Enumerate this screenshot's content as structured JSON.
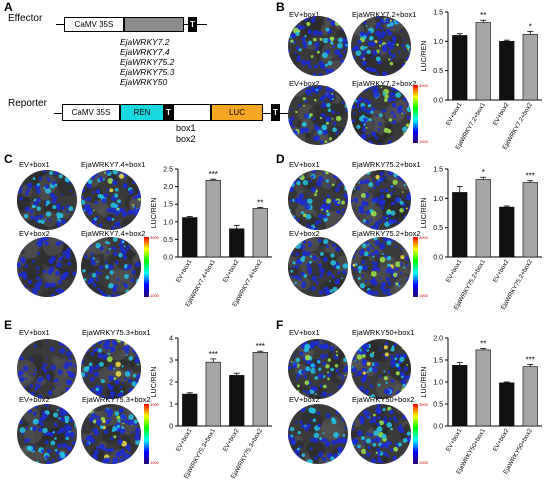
{
  "panel_a": {
    "label": "A",
    "effector_label": "Effector",
    "effector_promoter": "CaMV 35S",
    "effector_terminator": "T",
    "effector_genes": [
      "EjaWRKY7.2",
      "EjaWRKY7.4",
      "EjaWRKY75.2",
      "EjaWRKY75.3",
      "EjaWRKY50"
    ],
    "reporter_label": "Reporter",
    "reporter_promoter": "CaMV 35S",
    "reporter_ren": "REN",
    "reporter_t1": "T",
    "reporter_luc": "LUC",
    "reporter_t2": "T",
    "reporter_boxes": [
      "box1",
      "box2"
    ],
    "colors": {
      "effector_gene_box": "#8c8c8c",
      "ren": "#19d8e0",
      "luc": "#f5a623"
    }
  },
  "colorbar": {
    "max": "3000",
    "min": "1000"
  },
  "panels": [
    {
      "id": "B",
      "images": [
        "EV+box1",
        "EjaWRKY7.2+box1",
        "EV+box2",
        "EjaWRKY7.2+box2"
      ],
      "ylabel": "LUC/REN",
      "chart_data": {
        "type": "bar",
        "categories": [
          "EV+box1",
          "EjaWRKY7.2+box1",
          "EV+box2",
          "EjaWRKY7.2+box2"
        ],
        "values": [
          1.1,
          1.32,
          1.0,
          1.12
        ],
        "errors": [
          0.03,
          0.04,
          0.02,
          0.05
        ],
        "significance": [
          "",
          "**",
          "",
          "*"
        ],
        "ylim": [
          0,
          1.5
        ],
        "yticks": [
          "0.0",
          "0.5",
          "1.0",
          "1.5"
        ],
        "colors": [
          "#111111",
          "#a6a6a6",
          "#111111",
          "#a6a6a6"
        ]
      }
    },
    {
      "id": "C",
      "images": [
        "EV+box1",
        "EjaWRKY7.4+box1",
        "EV+box2",
        "EjaWRKY7.4+box2"
      ],
      "ylabel": "LUC/REN",
      "chart_data": {
        "type": "bar",
        "categories": [
          "EV+box1",
          "EjaWRKY7.4+box1",
          "EV+box2",
          "EjaWRKY7.4+box2"
        ],
        "values": [
          1.12,
          2.18,
          0.8,
          1.38
        ],
        "errors": [
          0.03,
          0.03,
          0.1,
          0.03
        ],
        "significance": [
          "",
          "***",
          "",
          "**"
        ],
        "ylim": [
          0,
          2.5
        ],
        "yticks": [
          "0.0",
          "0.5",
          "1.0",
          "1.5",
          "2.0",
          "2.5"
        ],
        "colors": [
          "#111111",
          "#a6a6a6",
          "#111111",
          "#a6a6a6"
        ]
      }
    },
    {
      "id": "D",
      "images": [
        "EV+box1",
        "EjaWRKY75.2+box1",
        "EV+box2",
        "EjaWRKY75.2+box2"
      ],
      "ylabel": "LUC/REN",
      "chart_data": {
        "type": "bar",
        "categories": [
          "EV+box1",
          "EjaWRKY75.2+box1",
          "EV+box2",
          "EjaWRKY75.2+box2"
        ],
        "values": [
          1.1,
          1.32,
          0.85,
          1.27
        ],
        "errors": [
          0.1,
          0.04,
          0.02,
          0.03
        ],
        "significance": [
          "",
          "*",
          "",
          "***"
        ],
        "ylim": [
          0,
          1.5
        ],
        "yticks": [
          "0.0",
          "0.5",
          "1.0",
          "1.5"
        ],
        "colors": [
          "#111111",
          "#a6a6a6",
          "#111111",
          "#a6a6a6"
        ]
      }
    },
    {
      "id": "E",
      "images": [
        "EV+box1",
        "EjaWRKY75.3+box1",
        "EV+box2",
        "EjaWRKY75.3+box2"
      ],
      "ylabel": "LUC/REN",
      "chart_data": {
        "type": "bar",
        "categories": [
          "EV+box1",
          "EjaWRKY75.3+box1",
          "EV+box2",
          "EjaWRKY75.3+box2"
        ],
        "values": [
          1.45,
          2.9,
          2.3,
          3.35
        ],
        "errors": [
          0.06,
          0.15,
          0.1,
          0.05
        ],
        "significance": [
          "",
          "***",
          "",
          "***"
        ],
        "ylim": [
          0,
          4
        ],
        "yticks": [
          "0",
          "1",
          "2",
          "3",
          "4"
        ],
        "colors": [
          "#111111",
          "#a6a6a6",
          "#111111",
          "#a6a6a6"
        ]
      }
    },
    {
      "id": "F",
      "images": [
        "EV+box1",
        "EjaWRKY50+box1",
        "EV+box2",
        "EjaWRKY50+box2"
      ],
      "ylabel": "LUC/REN",
      "chart_data": {
        "type": "bar",
        "categories": [
          "EV+box1",
          "EjaWRKY50+box1",
          "EV+box2",
          "EjaWRKY50+box2"
        ],
        "values": [
          1.38,
          1.73,
          0.98,
          1.35
        ],
        "errors": [
          0.06,
          0.03,
          0.02,
          0.05
        ],
        "significance": [
          "",
          "**",
          "",
          "***"
        ],
        "ylim": [
          0,
          2.0
        ],
        "yticks": [
          "0.0",
          "0.5",
          "1.0",
          "1.5",
          "2.0"
        ],
        "colors": [
          "#111111",
          "#a6a6a6",
          "#111111",
          "#a6a6a6"
        ]
      }
    }
  ]
}
